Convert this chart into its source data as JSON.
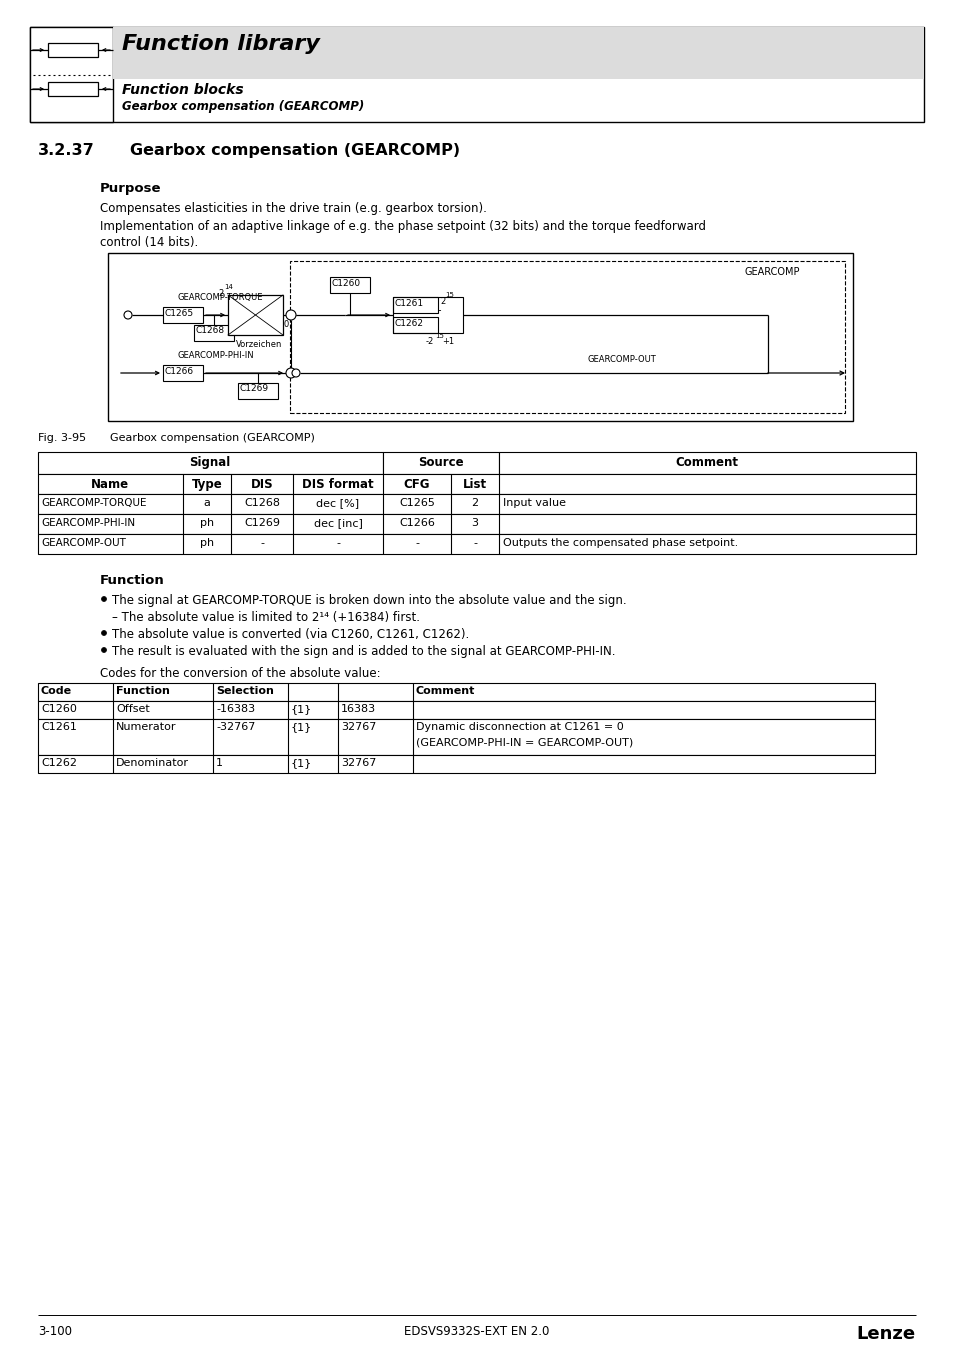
{
  "page_title": "Function library",
  "subtitle1": "Function blocks",
  "subtitle2": "Gearbox compensation (GEARCOMP)",
  "section_number": "3.2.37",
  "section_title": "Gearbox compensation (GEARCOMP)",
  "purpose_title": "Purpose",
  "purpose_text1": "Compensates elasticities in the drive train (e.g. gearbox torsion).",
  "purpose_text2": "Implementation of an adaptive linkage of e.g. the phase setpoint (32 bits) and the torque feedforward",
  "purpose_text3": "control (14 bits).",
  "fig_label": "Fig. 3-95",
  "fig_caption": "Gearbox compensation (GEARCOMP)",
  "signal_table_rows": [
    [
      "GEARCOMP-TORQUE",
      "a",
      "C1268",
      "dec [%]",
      "C1265",
      "2",
      "Input value"
    ],
    [
      "GEARCOMP-PHI-IN",
      "ph",
      "C1269",
      "dec [inc]",
      "C1266",
      "3",
      ""
    ],
    [
      "GEARCOMP-OUT",
      "ph",
      "-",
      "-",
      "-",
      "-",
      "Outputs the compensated phase setpoint."
    ]
  ],
  "function_title": "Function",
  "function_bullets": [
    "The signal at GEARCOMP-TORQUE is broken down into the absolute value and the sign.",
    "– The absolute value is limited to 2¹⁴ (+16384) first.",
    "The absolute value is converted (via C1260, C1261, C1262).",
    "The result is evaluated with the sign and is added to the signal at GEARCOMP-PHI-IN."
  ],
  "codes_intro": "Codes for the conversion of the absolute value:",
  "codes_table_rows": [
    [
      "C1260",
      "Offset",
      "-16383",
      "{1}",
      "16383",
      ""
    ],
    [
      "C1261",
      "Numerator",
      "-32767",
      "{1}",
      "32767",
      "Dynamic disconnection at C1261 = 0\n(GEARCOMP-PHI-IN = GEARCOMP-OUT)"
    ],
    [
      "C1262",
      "Denominator",
      "1",
      "{1}",
      "32767",
      ""
    ]
  ],
  "footer_left": "3-100",
  "footer_center": "EDSVS9332S-EXT EN 2.0",
  "footer_right": "Lenze",
  "bg_header_color": "#dcdcdc",
  "bg_white": "#ffffff"
}
